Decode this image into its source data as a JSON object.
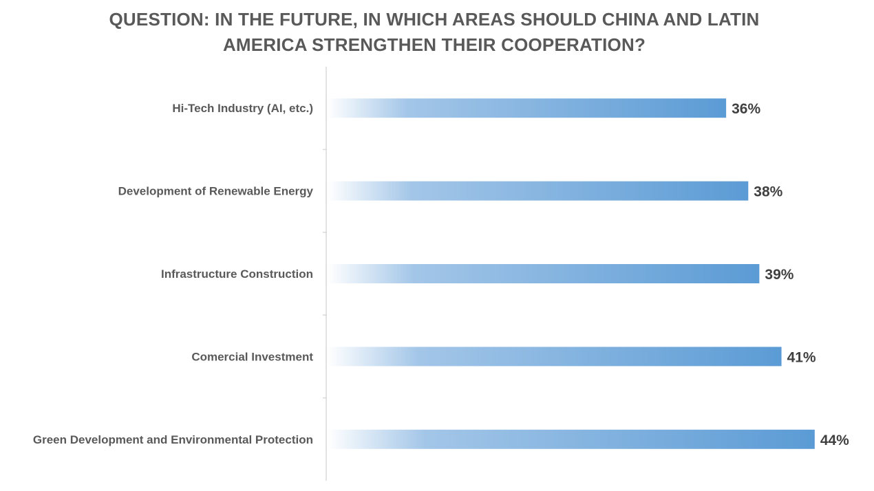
{
  "chart_data": {
    "type": "bar",
    "orientation": "horizontal",
    "title_lines": [
      "QUESTION: IN THE FUTURE, IN WHICH AREAS SHOULD CHINA AND LATIN",
      "AMERICA STRENGTHEN THEIR COOPERATION?"
    ],
    "categories": [
      "Hi-Tech Industry (AI, etc.)",
      "Development of Renewable Energy",
      "Infrastructure Construction",
      "Comercial Investment",
      "Green Development and Environmental Protection"
    ],
    "values": [
      36,
      38,
      39,
      41,
      44
    ],
    "value_labels": [
      "36%",
      "38%",
      "39%",
      "41%",
      "44%"
    ],
    "unit": "%",
    "xlim": [
      0,
      46
    ],
    "grid": false,
    "legend": "none",
    "bar_color": "#5b9bd5",
    "bar_fill": "gradient-left-to-right"
  }
}
